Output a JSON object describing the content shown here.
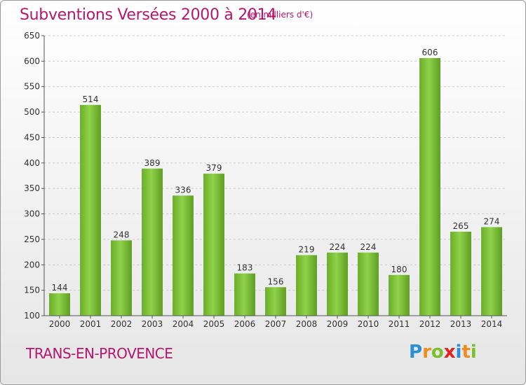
{
  "chart_data": {
    "type": "bar",
    "title": "Subventions Versées 2000 à 2014",
    "subtitle": "(en milliers d'€)",
    "categories": [
      "2000",
      "2001",
      "2002",
      "2003",
      "2004",
      "2005",
      "2006",
      "2007",
      "2008",
      "2009",
      "2010",
      "2011",
      "2012",
      "2013",
      "2014"
    ],
    "values": [
      144,
      514,
      248,
      389,
      336,
      379,
      183,
      156,
      219,
      224,
      224,
      180,
      606,
      265,
      274
    ],
    "ylim": [
      100,
      650
    ],
    "yticks": [
      100,
      150,
      200,
      250,
      300,
      350,
      400,
      450,
      500,
      550,
      600,
      650
    ],
    "grid": true,
    "bar_color": "#7cc242",
    "title_color": "#b5176e"
  },
  "footer": {
    "place": "TRANS-EN-PROVENCE",
    "logo": {
      "letters": [
        {
          "char": "P",
          "color": "#2a8fd6"
        },
        {
          "char": "r",
          "color": "#f28c1c"
        },
        {
          "char": "o",
          "color": "#7bbf2a"
        },
        {
          "char": "x",
          "color": "#e2231a"
        },
        {
          "char": "i",
          "color": "#2a8fd6"
        },
        {
          "char": "t",
          "color": "#f28c1c"
        },
        {
          "char": "i",
          "color": "#7bbf2a"
        }
      ]
    }
  }
}
